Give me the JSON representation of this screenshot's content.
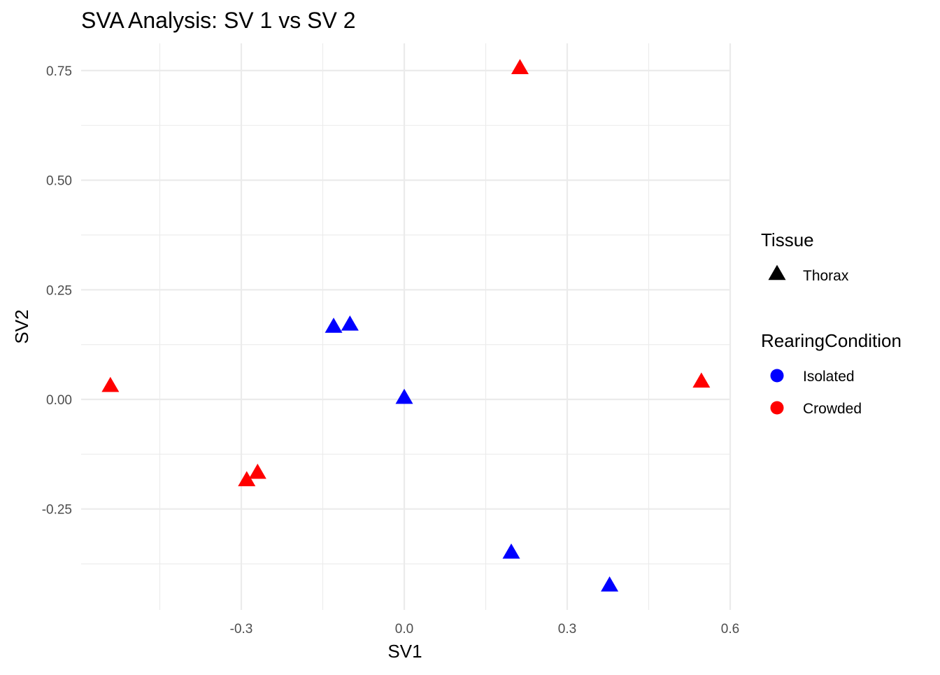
{
  "chart_data": {
    "type": "scatter",
    "title": "SVA Analysis: SV 1  vs SV 2",
    "xlabel": "SV1",
    "ylabel": "SV2",
    "xlim": [
      -0.6,
      0.6
    ],
    "ylim": [
      -0.48,
      0.8
    ],
    "x_ticks": [
      -0.3,
      0.0,
      0.3,
      0.6
    ],
    "x_tick_labels": [
      "-0.3",
      "0.0",
      "0.3",
      "0.6"
    ],
    "y_ticks": [
      -0.25,
      0.0,
      0.25,
      0.5,
      0.75
    ],
    "y_tick_labels": [
      "-0.25",
      "0.00",
      "0.25",
      "0.50",
      "0.75"
    ],
    "grid": true,
    "legend_position": "right",
    "legends": [
      {
        "title": "Tissue",
        "entries": [
          {
            "label": "Thorax",
            "shape": "triangle",
            "color": "#000000"
          }
        ]
      },
      {
        "title": "RearingCondition",
        "entries": [
          {
            "label": "Isolated",
            "shape": "circle",
            "color": "#0000ff"
          },
          {
            "label": "Crowded",
            "shape": "circle",
            "color": "#ff0000"
          }
        ]
      }
    ],
    "series": [
      {
        "name": "Isolated",
        "color": "#0000ff",
        "shape": "triangle",
        "points": [
          {
            "x": -0.13,
            "y": 0.165
          },
          {
            "x": -0.1,
            "y": 0.17
          },
          {
            "x": 0.0,
            "y": 0.003
          },
          {
            "x": 0.197,
            "y": -0.35
          },
          {
            "x": 0.378,
            "y": -0.425
          }
        ]
      },
      {
        "name": "Crowded",
        "color": "#ff0000",
        "shape": "triangle",
        "points": [
          {
            "x": -0.541,
            "y": 0.03
          },
          {
            "x": -0.29,
            "y": -0.185
          },
          {
            "x": -0.27,
            "y": -0.168
          },
          {
            "x": 0.213,
            "y": 0.755
          },
          {
            "x": 0.547,
            "y": 0.04
          }
        ]
      }
    ]
  }
}
